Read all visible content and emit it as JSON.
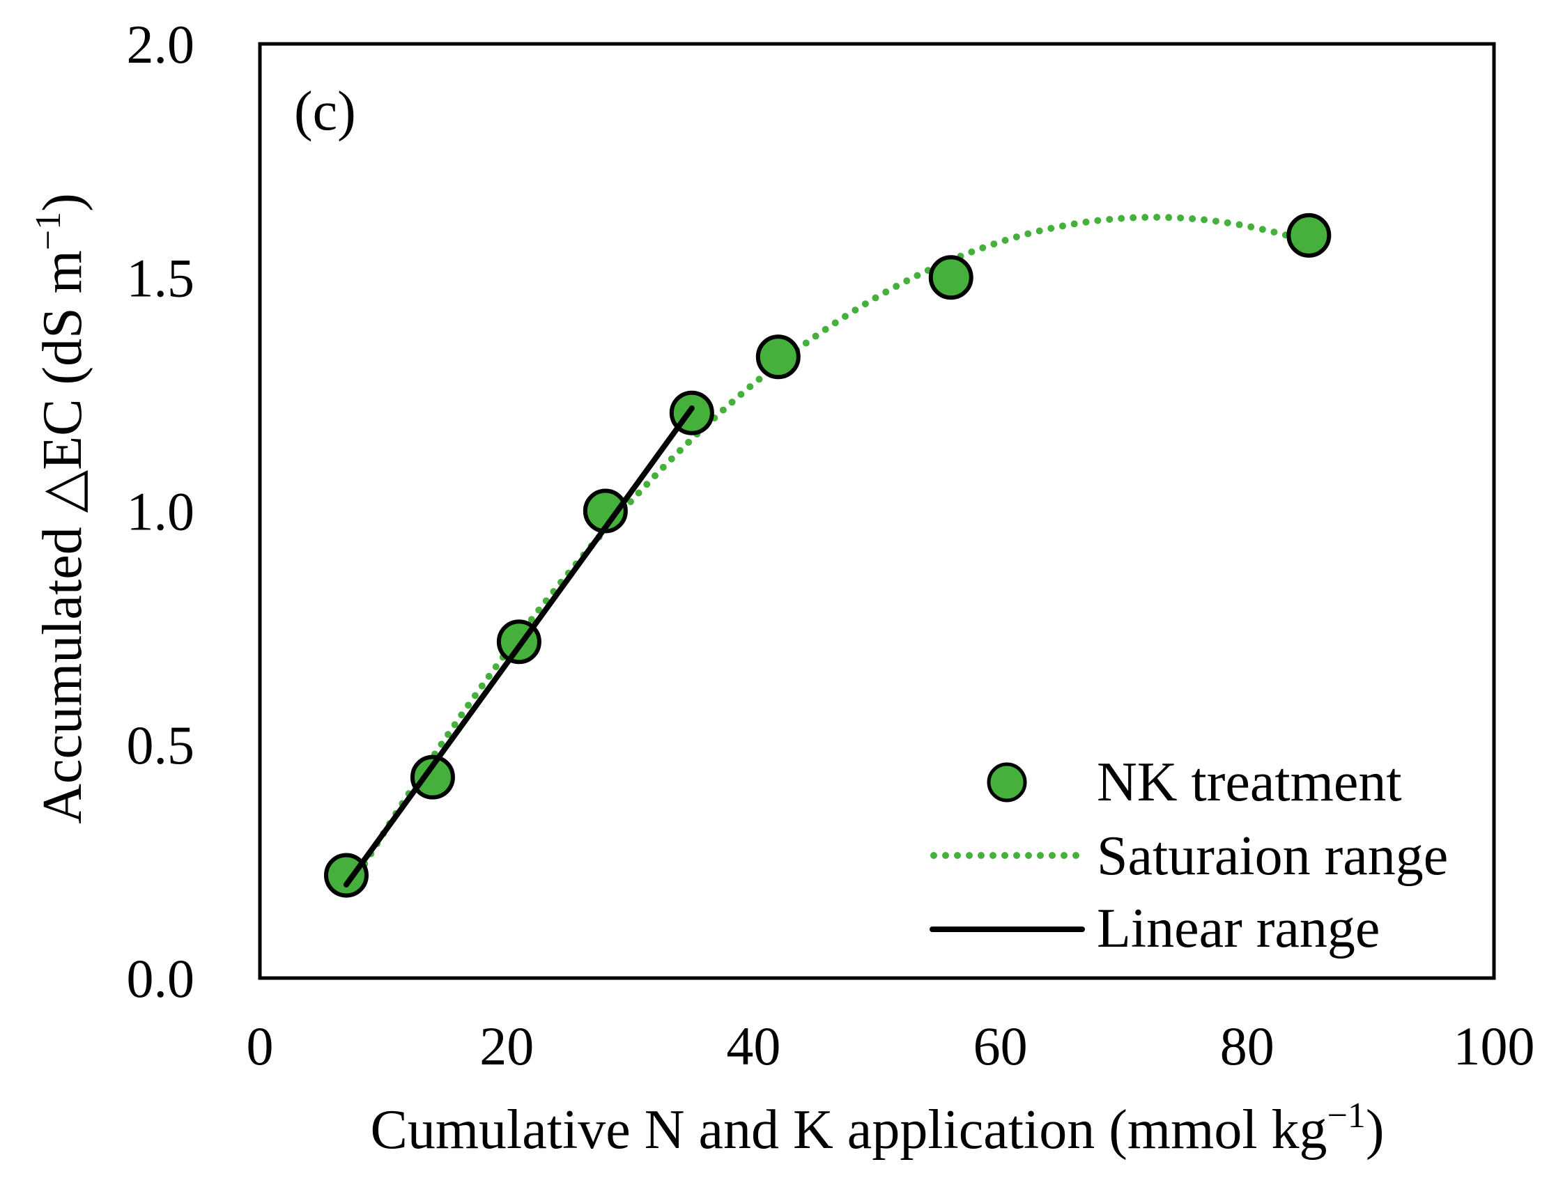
{
  "chart_data": {
    "type": "scatter",
    "panel_label": "(c)",
    "xlabel": "Cumulative N and K application (mmol kg",
    "xlabel_sup": "−1",
    "xlabel_end": ")",
    "ylabel": "Accumulated △EC (dS m",
    "ylabel_sup": "−1",
    "ylabel_end": ")",
    "xlim": [
      0,
      100
    ],
    "ylim": [
      0,
      2.0
    ],
    "xticks": [
      "0",
      "20",
      "40",
      "60",
      "80",
      "100"
    ],
    "xtick_values": [
      0,
      20,
      40,
      60,
      80,
      100
    ],
    "yticks": [
      "0.0",
      "0.5",
      "1.0",
      "1.5",
      "2.0"
    ],
    "ytick_values": [
      0,
      0.5,
      1.0,
      1.5,
      2.0
    ],
    "grid": false,
    "legend_position": "bottom-right",
    "series": [
      {
        "name": "NK treatment",
        "kind": "points",
        "color": "#45b03c",
        "edge_color": "#000000",
        "x": [
          7,
          14,
          21,
          28,
          35,
          42,
          56,
          85
        ],
        "y": [
          0.22,
          0.43,
          0.72,
          1.0,
          1.21,
          1.33,
          1.5,
          1.59
        ]
      },
      {
        "name": "Saturaion range",
        "kind": "dotted-curve",
        "color": "#45b03c",
        "fit": "quadratic",
        "coefficients": [
          -0.147,
          0.049,
          -0.000338
        ],
        "x_range": [
          7,
          85
        ]
      },
      {
        "name": "Linear range",
        "kind": "line",
        "color": "#000000",
        "x": [
          7,
          35
        ],
        "y": [
          0.2,
          1.22
        ]
      }
    ]
  }
}
